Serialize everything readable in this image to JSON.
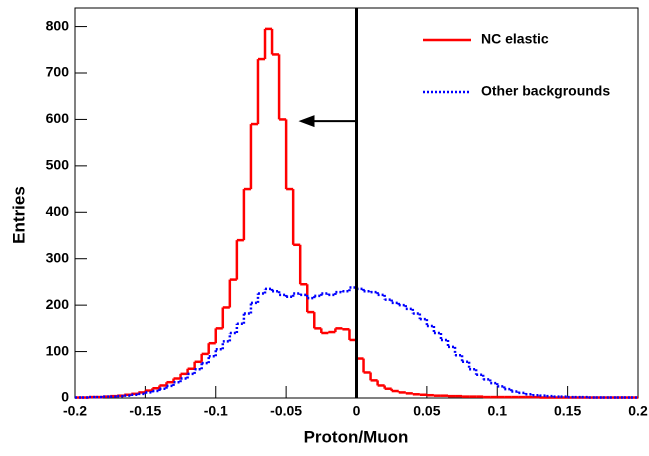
{
  "chart_data": {
    "type": "histogram",
    "xlabel": "Proton/Muon",
    "ylabel": "Entries",
    "xlim": [
      -0.2,
      0.2
    ],
    "ylim": [
      0,
      840
    ],
    "xticks": [
      -0.2,
      -0.15,
      -0.1,
      -0.05,
      0,
      0.05,
      0.1,
      0.15,
      0.2
    ],
    "yticks": [
      0,
      100,
      200,
      300,
      400,
      500,
      600,
      700,
      800
    ],
    "grid": false,
    "legend": "upper right",
    "cut": 0,
    "bins": [
      -0.2,
      -0.195,
      -0.19,
      -0.185,
      -0.18,
      -0.175,
      -0.17,
      -0.165,
      -0.16,
      -0.155,
      -0.15,
      -0.145,
      -0.14,
      -0.135,
      -0.13,
      -0.125,
      -0.12,
      -0.115,
      -0.11,
      -0.105,
      -0.1,
      -0.095,
      -0.09,
      -0.085,
      -0.08,
      -0.075,
      -0.07,
      -0.065,
      -0.06,
      -0.055,
      -0.05,
      -0.045,
      -0.04,
      -0.035,
      -0.03,
      -0.025,
      -0.02,
      -0.015,
      -0.01,
      -0.005,
      0,
      0.005,
      0.01,
      0.015,
      0.02,
      0.025,
      0.03,
      0.035,
      0.04,
      0.045,
      0.05,
      0.055,
      0.06,
      0.065,
      0.07,
      0.075,
      0.08,
      0.085,
      0.09,
      0.095,
      0.1,
      0.105,
      0.11,
      0.115,
      0.12,
      0.125,
      0.13,
      0.135,
      0.14,
      0.145,
      0.15,
      0.155,
      0.16,
      0.165,
      0.17,
      0.175,
      0.18,
      0.185,
      0.19,
      0.195,
      0.2
    ],
    "series": [
      {
        "name": "NC elastic",
        "color": "#ff0000",
        "style": "solid",
        "values": [
          1,
          1,
          2,
          2,
          3,
          4,
          5,
          7,
          9,
          12,
          16,
          21,
          27,
          34,
          42,
          52,
          63,
          78,
          95,
          118,
          150,
          195,
          255,
          340,
          450,
          590,
          730,
          795,
          740,
          600,
          450,
          330,
          245,
          185,
          150,
          140,
          142,
          150,
          148,
          125,
          85,
          55,
          38,
          27,
          20,
          15,
          12,
          10,
          8,
          7,
          6,
          5,
          5,
          4,
          4,
          3,
          3,
          3,
          2,
          2,
          2,
          2,
          2,
          2,
          2,
          2,
          1,
          1,
          1,
          1,
          1,
          1,
          1,
          1,
          1,
          1,
          1,
          1,
          1,
          1
        ]
      },
      {
        "name": "Other backgrounds",
        "color": "#0000ff",
        "style": "dotted",
        "values": [
          1,
          1,
          2,
          2,
          3,
          3,
          4,
          5,
          7,
          9,
          12,
          15,
          20,
          26,
          34,
          42,
          52,
          62,
          75,
          90,
          105,
          122,
          140,
          160,
          182,
          205,
          225,
          235,
          230,
          222,
          218,
          225,
          222,
          215,
          220,
          225,
          222,
          228,
          230,
          238,
          235,
          230,
          228,
          222,
          212,
          205,
          200,
          192,
          182,
          170,
          155,
          140,
          125,
          110,
          92,
          78,
          62,
          50,
          40,
          32,
          25,
          19,
          14,
          11,
          8,
          6,
          5,
          4,
          3,
          3,
          2,
          2,
          2,
          1,
          1,
          1,
          1,
          1,
          1,
          1
        ]
      }
    ]
  }
}
